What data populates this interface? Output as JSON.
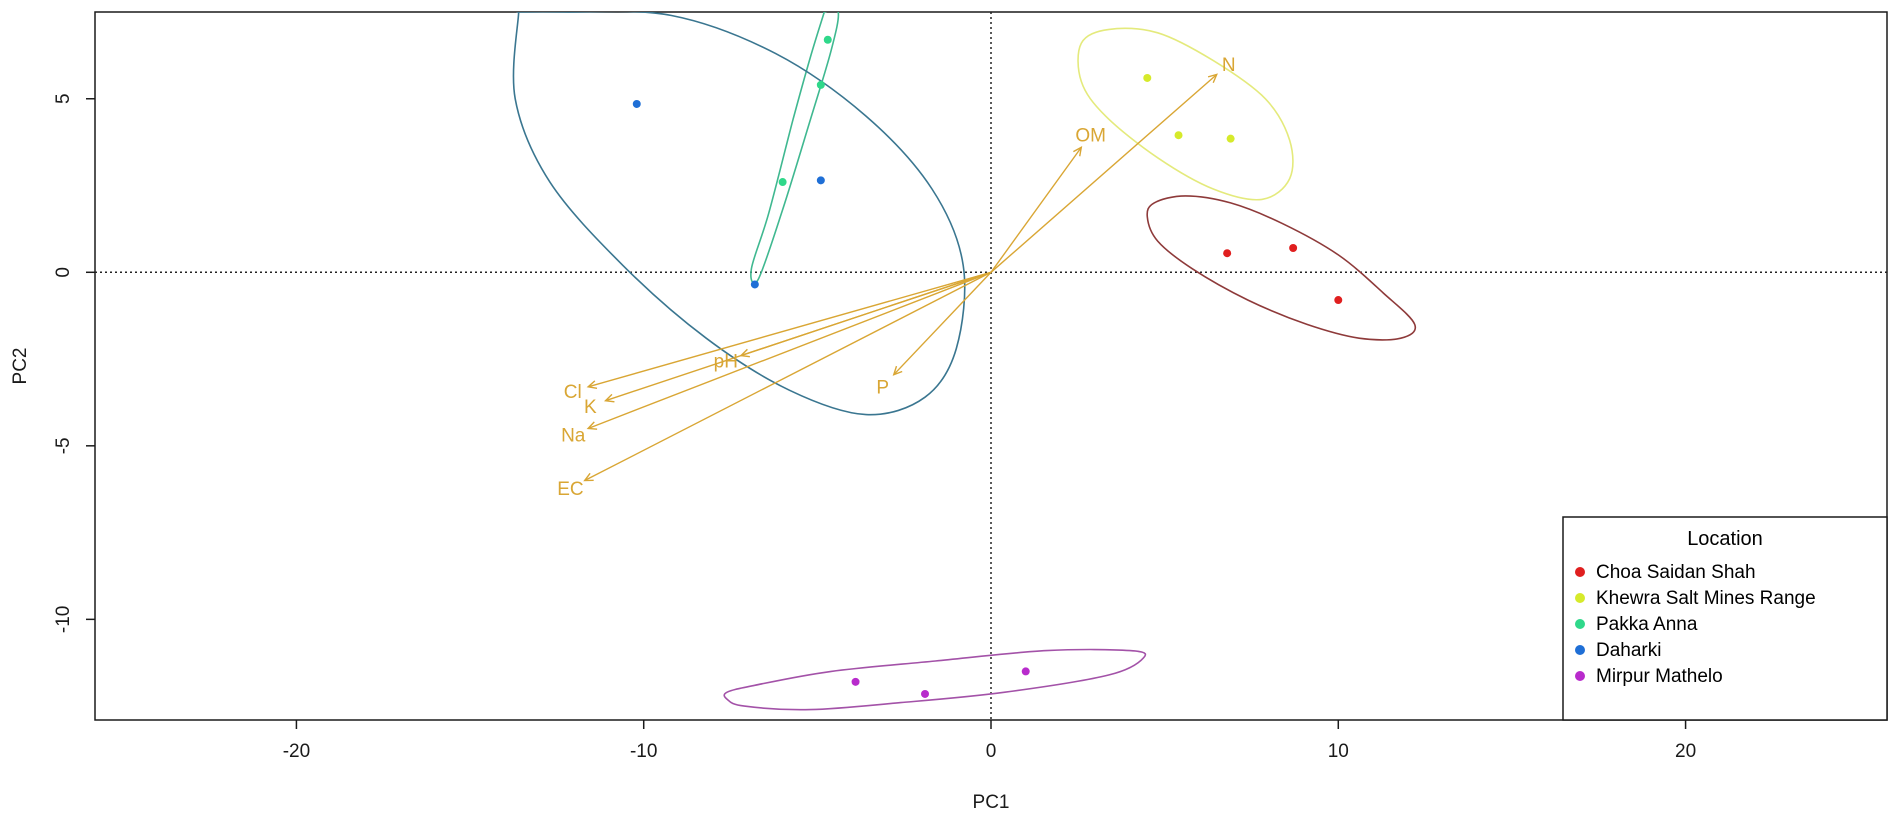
{
  "chart_data": {
    "type": "scatter",
    "title": "",
    "xlabel": "PC1",
    "ylabel": "PC2",
    "xlim": [
      -25.8,
      25.8
    ],
    "ylim": [
      -12.9,
      7.5
    ],
    "xticks": [
      -20,
      -10,
      0,
      10,
      20
    ],
    "yticks": [
      -10,
      -5,
      0,
      5
    ],
    "reference_lines": {
      "x": 0,
      "y": 0,
      "style": "dotted"
    },
    "grid": false,
    "loading_color": "#d9a634",
    "series": [
      {
        "name": "Choa Saidan Shah",
        "color": "#e01f1f",
        "ellipse_color": "#8e3a3a",
        "points": [
          [
            6.8,
            0.55
          ],
          [
            8.7,
            0.7
          ],
          [
            10.0,
            -0.8
          ]
        ]
      },
      {
        "name": "Khewra Salt Mines Range",
        "color": "#d6ea2b",
        "ellipse_color": "#e4ea7c",
        "points": [
          [
            4.5,
            5.6
          ],
          [
            5.4,
            3.95
          ],
          [
            6.9,
            3.85
          ]
        ]
      },
      {
        "name": "Pakka Anna",
        "color": "#2fd88a",
        "ellipse_color": "#3fb890",
        "points": [
          [
            -4.7,
            6.7
          ],
          [
            -4.9,
            5.4
          ],
          [
            -6.0,
            2.6
          ]
        ]
      },
      {
        "name": "Daharki",
        "color": "#1f6fd6",
        "ellipse_color": "#3a7690",
        "points": [
          [
            -10.2,
            4.85
          ],
          [
            -4.9,
            2.65
          ],
          [
            -6.8,
            -0.35
          ]
        ]
      },
      {
        "name": "Mirpur Mathelo",
        "color": "#b82bcc",
        "ellipse_color": "#a352a8",
        "points": [
          [
            -3.9,
            -11.8
          ],
          [
            -1.9,
            -12.15
          ],
          [
            1.0,
            -11.5
          ]
        ]
      }
    ],
    "ellipses": [
      {
        "series": "Choa Saidan Shah",
        "vertices": [
          [
            4.6,
            2.3
          ],
          [
            11.7,
            -1.8
          ],
          [
            12.0,
            -2.0
          ],
          [
            4.6,
            2.2
          ]
        ],
        "poly": [
          [
            4.7,
            2.0
          ],
          [
            5.6,
            2.2
          ],
          [
            6.9,
            2.0
          ],
          [
            8.4,
            1.4
          ],
          [
            10.0,
            0.5
          ],
          [
            11.3,
            -0.6
          ],
          [
            12.2,
            -1.5
          ],
          [
            11.8,
            -1.9
          ],
          [
            10.6,
            -1.9
          ],
          [
            9.1,
            -1.5
          ],
          [
            7.4,
            -0.8
          ],
          [
            5.8,
            0.1
          ],
          [
            4.8,
            0.9
          ],
          [
            4.5,
            1.6
          ]
        ]
      },
      {
        "series": "Khewra Salt Mines Range",
        "poly": [
          [
            2.6,
            6.6
          ],
          [
            3.4,
            7.0
          ],
          [
            4.8,
            6.9
          ],
          [
            6.4,
            6.1
          ],
          [
            7.9,
            5.0
          ],
          [
            8.6,
            3.8
          ],
          [
            8.6,
            2.7
          ],
          [
            7.8,
            2.1
          ],
          [
            6.4,
            2.4
          ],
          [
            4.8,
            3.3
          ],
          [
            3.3,
            4.5
          ],
          [
            2.6,
            5.5
          ]
        ]
      },
      {
        "series": "Pakka Anna",
        "poly": [
          [
            -4.8,
            7.5
          ],
          [
            -4.4,
            7.5
          ],
          [
            -4.6,
            6.4
          ],
          [
            -5.2,
            4.4
          ],
          [
            -6.0,
            1.8
          ],
          [
            -6.7,
            -0.2
          ],
          [
            -6.9,
            0.1
          ],
          [
            -6.4,
            1.7
          ],
          [
            -5.7,
            4.4
          ],
          [
            -5.2,
            6.2
          ],
          [
            -4.8,
            7.5
          ]
        ]
      },
      {
        "series": "Daharki",
        "poly": [
          [
            -13.6,
            7.5
          ],
          [
            -12.3,
            7.5
          ],
          [
            -9.2,
            7.4
          ],
          [
            -6.2,
            6.3
          ],
          [
            -3.6,
            4.5
          ],
          [
            -1.7,
            2.4
          ],
          [
            -0.8,
            0.2
          ],
          [
            -1.0,
            -2.2
          ],
          [
            -1.9,
            -3.6
          ],
          [
            -3.6,
            -4.1
          ],
          [
            -5.8,
            -3.4
          ],
          [
            -8.2,
            -1.9
          ],
          [
            -10.6,
            0.2
          ],
          [
            -12.7,
            2.6
          ],
          [
            -13.7,
            5.0
          ],
          [
            -13.6,
            7.5
          ]
        ]
      },
      {
        "series": "Mirpur Mathelo",
        "poly": [
          [
            -7.6,
            -12.3
          ],
          [
            -7.1,
            -12.5
          ],
          [
            -5.2,
            -12.6
          ],
          [
            -2.6,
            -12.4
          ],
          [
            0.4,
            -12.1
          ],
          [
            3.4,
            -11.6
          ],
          [
            4.4,
            -11.1
          ],
          [
            4.0,
            -10.9
          ],
          [
            1.6,
            -10.9
          ],
          [
            -1.6,
            -11.2
          ],
          [
            -4.6,
            -11.5
          ],
          [
            -6.8,
            -11.9
          ],
          [
            -7.6,
            -12.1
          ]
        ]
      }
    ],
    "loadings": [
      {
        "label": "N",
        "x": 6.5,
        "y": 5.7
      },
      {
        "label": "OM",
        "x": 2.6,
        "y": 3.6
      },
      {
        "label": "pH",
        "x": -7.2,
        "y": -2.4
      },
      {
        "label": "Cl",
        "x": -11.6,
        "y": -3.3
      },
      {
        "label": "K",
        "x": -11.1,
        "y": -3.7
      },
      {
        "label": "Na",
        "x": -11.6,
        "y": -4.5
      },
      {
        "label": "EC",
        "x": -11.7,
        "y": -6.0
      },
      {
        "label": "P",
        "x": -2.8,
        "y": -2.95
      }
    ],
    "legend": {
      "title": "Location",
      "position": "bottom-right"
    }
  }
}
